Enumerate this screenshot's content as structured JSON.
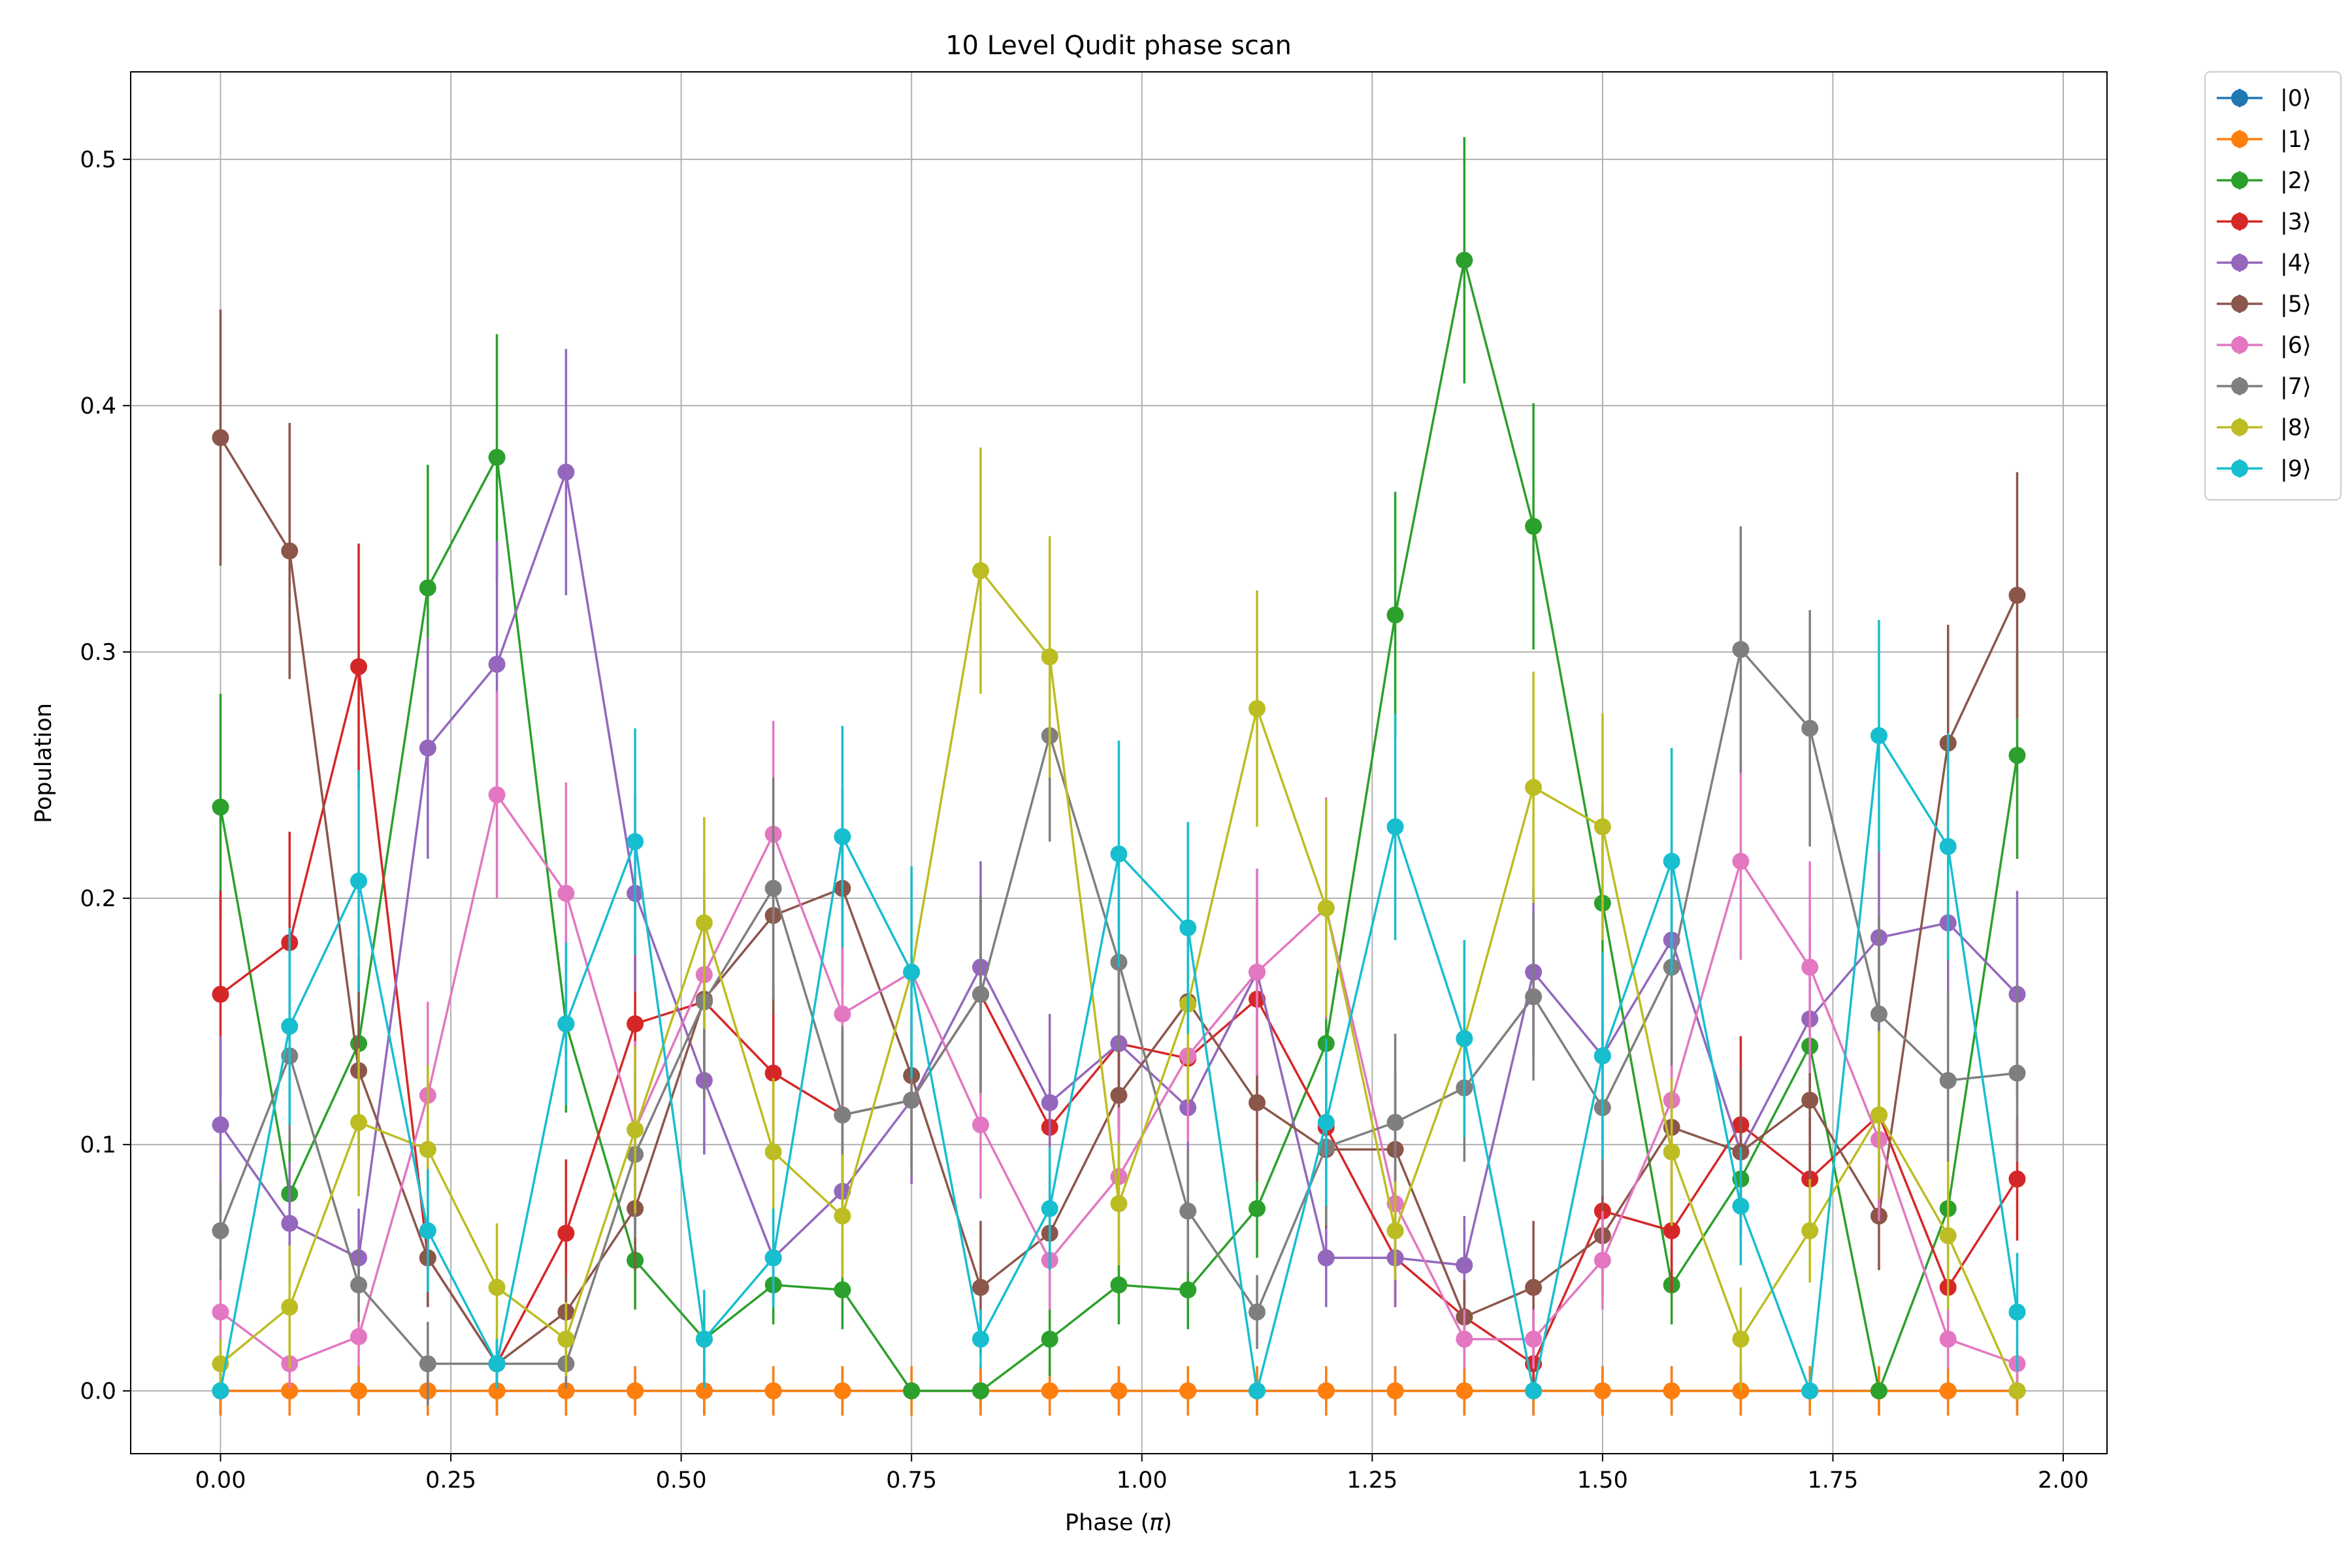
{
  "chart_data": {
    "type": "line",
    "title": "10 Level Qudit phase scan",
    "xlabel_prefix": "Phase (",
    "xlabel_symbol": "π",
    "xlabel_suffix": ")",
    "ylabel": "Population",
    "xlim": [
      -0.0975,
      2.0475
    ],
    "ylim": [
      -0.0255,
      0.5355
    ],
    "xticks": [
      0.0,
      0.25,
      0.5,
      0.75,
      1.0,
      1.25,
      1.5,
      1.75,
      2.0
    ],
    "xtick_labels": [
      "0.00",
      "0.25",
      "0.50",
      "0.75",
      "1.00",
      "1.25",
      "1.50",
      "1.75",
      "2.00"
    ],
    "yticks": [
      0.0,
      0.1,
      0.2,
      0.3,
      0.4,
      0.5
    ],
    "ytick_labels": [
      "0.0",
      "0.1",
      "0.2",
      "0.3",
      "0.4",
      "0.5"
    ],
    "grid": true,
    "legend_placement": "outside top-right",
    "x": [
      0.0,
      0.075,
      0.15,
      0.225,
      0.3,
      0.375,
      0.45,
      0.525,
      0.6,
      0.675,
      0.75,
      0.825,
      0.9,
      0.975,
      1.05,
      1.125,
      1.2,
      1.275,
      1.35,
      1.425,
      1.5,
      1.575,
      1.65,
      1.725,
      1.8,
      1.875,
      1.95
    ],
    "series": [
      {
        "name": "|0⟩",
        "color": "#1f77b4",
        "values": [
          0,
          0,
          0,
          0,
          0,
          0,
          0,
          0,
          0,
          0,
          0,
          0,
          0,
          0,
          0,
          0,
          0,
          0,
          0,
          0,
          0,
          0,
          0,
          0,
          0,
          0,
          0
        ],
        "errors": [
          0.01,
          0.01,
          0.01,
          0.01,
          0.01,
          0.01,
          0.01,
          0.01,
          0.01,
          0.01,
          0.01,
          0.01,
          0.01,
          0.01,
          0.01,
          0.01,
          0.01,
          0.01,
          0.01,
          0.01,
          0.01,
          0.01,
          0.01,
          0.01,
          0.01,
          0.01,
          0.01
        ]
      },
      {
        "name": "|1⟩",
        "color": "#ff7f0e",
        "values": [
          0,
          0,
          0,
          0,
          0,
          0,
          0,
          0,
          0,
          0,
          0,
          0,
          0,
          0,
          0,
          0,
          0,
          0,
          0,
          0,
          0,
          0,
          0,
          0,
          0,
          0,
          0
        ],
        "errors": [
          0.01,
          0.01,
          0.01,
          0.01,
          0.01,
          0.01,
          0.01,
          0.01,
          0.01,
          0.01,
          0.01,
          0.01,
          0.01,
          0.01,
          0.01,
          0.01,
          0.01,
          0.01,
          0.01,
          0.01,
          0.01,
          0.01,
          0.01,
          0.01,
          0.01,
          0.01,
          0.01
        ]
      },
      {
        "name": "|2⟩",
        "color": "#2ca02c",
        "values": [
          0.237,
          0.08,
          0.141,
          0.326,
          0.379,
          0.149,
          0.053,
          0.021,
          0.043,
          0.041,
          0.0,
          0.0,
          0.021,
          0.043,
          0.041,
          0.074,
          0.141,
          0.315,
          0.459,
          0.351,
          0.198,
          0.043,
          0.086,
          0.14,
          0.0,
          0.074,
          0.258
        ],
        "errors": [
          0.046,
          0.03,
          0.035,
          0.05,
          0.05,
          0.036,
          0.02,
          0.015,
          0.016,
          0.016,
          0.0,
          0.0,
          0.015,
          0.016,
          0.016,
          0.02,
          0.035,
          0.05,
          0.05,
          0.05,
          0.04,
          0.016,
          0.02,
          0.035,
          0.0,
          0.02,
          0.042
        ]
      },
      {
        "name": "|3⟩",
        "color": "#d62728",
        "values": [
          0.161,
          0.182,
          0.294,
          0.054,
          0.011,
          0.064,
          0.149,
          0.158,
          0.129,
          0.112,
          0.118,
          0.161,
          0.107,
          0.141,
          0.135,
          0.159,
          0.107,
          0.054,
          0.03,
          0.011,
          0.073,
          0.065,
          0.108,
          0.086,
          0.112,
          0.042,
          0.086
        ],
        "errors": [
          0.042,
          0.045,
          0.05,
          0.02,
          0.01,
          0.03,
          0.036,
          0.038,
          0.036,
          0.034,
          0.034,
          0.04,
          0.033,
          0.035,
          0.035,
          0.04,
          0.033,
          0.02,
          0.015,
          0.01,
          0.025,
          0.025,
          0.036,
          0.025,
          0.036,
          0.02,
          0.025
        ]
      },
      {
        "name": "|4⟩",
        "color": "#9467bd",
        "values": [
          0.108,
          0.068,
          0.054,
          0.261,
          0.295,
          0.373,
          0.202,
          0.126,
          0.054,
          0.081,
          0.118,
          0.172,
          0.117,
          0.141,
          0.115,
          0.17,
          0.054,
          0.054,
          0.051,
          0.17,
          0.136,
          0.183,
          0.097,
          0.151,
          0.184,
          0.19,
          0.161
        ],
        "errors": [
          0.036,
          0.025,
          0.02,
          0.045,
          0.05,
          0.05,
          0.04,
          0.03,
          0.02,
          0.028,
          0.034,
          0.043,
          0.036,
          0.036,
          0.034,
          0.042,
          0.02,
          0.02,
          0.02,
          0.034,
          0.034,
          0.04,
          0.034,
          0.036,
          0.04,
          0.04,
          0.042
        ]
      },
      {
        "name": "|5⟩",
        "color": "#8c564b",
        "values": [
          0.387,
          0.341,
          0.13,
          0.054,
          0.011,
          0.032,
          0.074,
          0.159,
          0.193,
          0.204,
          0.128,
          0.042,
          0.064,
          0.12,
          0.158,
          0.117,
          0.098,
          0.098,
          0.03,
          0.042,
          0.063,
          0.107,
          0.097,
          0.118,
          0.071,
          0.263,
          0.323
        ],
        "errors": [
          0.052,
          0.052,
          0.036,
          0.02,
          0.01,
          0.015,
          0.025,
          0.04,
          0.04,
          0.04,
          0.036,
          0.027,
          0.026,
          0.036,
          0.04,
          0.032,
          0.032,
          0.032,
          0.015,
          0.027,
          0.025,
          0.033,
          0.034,
          0.036,
          0.022,
          0.048,
          0.05
        ]
      },
      {
        "name": "|6⟩",
        "color": "#e377c2",
        "values": [
          0.032,
          0.011,
          0.022,
          0.12,
          0.242,
          0.202,
          0.106,
          0.169,
          0.226,
          0.153,
          0.17,
          0.108,
          0.053,
          0.087,
          0.136,
          0.17,
          0.196,
          0.076,
          0.021,
          0.021,
          0.053,
          0.118,
          0.215,
          0.172,
          0.102,
          0.021,
          0.011
        ],
        "errors": [
          0.018,
          0.01,
          0.012,
          0.038,
          0.042,
          0.045,
          0.036,
          0.04,
          0.046,
          0.04,
          0.04,
          0.03,
          0.02,
          0.028,
          0.035,
          0.042,
          0.045,
          0.028,
          0.012,
          0.012,
          0.02,
          0.036,
          0.04,
          0.043,
          0.033,
          0.012,
          0.01
        ]
      },
      {
        "name": "|7⟩",
        "color": "#7f7f7f",
        "values": [
          0.065,
          0.136,
          0.043,
          0.011,
          0.011,
          0.011,
          0.096,
          0.158,
          0.204,
          0.112,
          0.118,
          0.161,
          0.266,
          0.174,
          0.073,
          0.032,
          0.099,
          0.109,
          0.123,
          0.16,
          0.115,
          0.172,
          0.301,
          0.269,
          0.153,
          0.126,
          0.129
        ],
        "errors": [
          0.02,
          0.035,
          0.015,
          0.017,
          0.01,
          0.01,
          0.034,
          0.04,
          0.045,
          0.036,
          0.03,
          0.04,
          0.043,
          0.036,
          0.025,
          0.015,
          0.032,
          0.036,
          0.03,
          0.034,
          0.036,
          0.04,
          0.05,
          0.048,
          0.04,
          0.036,
          0.036
        ]
      },
      {
        "name": "|8⟩",
        "color": "#bcbd22",
        "values": [
          0.011,
          0.034,
          0.109,
          0.098,
          0.042,
          0.021,
          0.106,
          0.19,
          0.097,
          0.071,
          0.17,
          0.333,
          0.298,
          0.076,
          0.157,
          0.277,
          0.196,
          0.065,
          0.143,
          0.245,
          0.229,
          0.097,
          0.021,
          0.065,
          0.112,
          0.063,
          0.0
        ],
        "errors": [
          0.01,
          0.025,
          0.03,
          0.034,
          0.026,
          0.015,
          0.034,
          0.043,
          0.03,
          0.025,
          0.04,
          0.05,
          0.049,
          0.025,
          0.04,
          0.048,
          0.044,
          0.02,
          0.04,
          0.047,
          0.046,
          0.03,
          0.021,
          0.021,
          0.034,
          0.03,
          0.0
        ]
      },
      {
        "name": "|9⟩",
        "color": "#17becf",
        "values": [
          0.0,
          0.148,
          0.207,
          0.065,
          0.011,
          0.149,
          0.223,
          0.021,
          0.054,
          0.225,
          0.17,
          0.021,
          0.074,
          0.218,
          0.188,
          0.0,
          0.109,
          0.229,
          0.143,
          0.0,
          0.136,
          0.215,
          0.075,
          0.0,
          0.266,
          0.221,
          0.032
        ],
        "errors": [
          0.0,
          0.04,
          0.045,
          0.025,
          0.01,
          0.033,
          0.046,
          0.02,
          0.02,
          0.045,
          0.043,
          0.012,
          0.025,
          0.046,
          0.043,
          0.0,
          0.034,
          0.046,
          0.04,
          0.0,
          0.042,
          0.046,
          0.024,
          0.0,
          0.047,
          0.046,
          0.024
        ]
      }
    ]
  }
}
